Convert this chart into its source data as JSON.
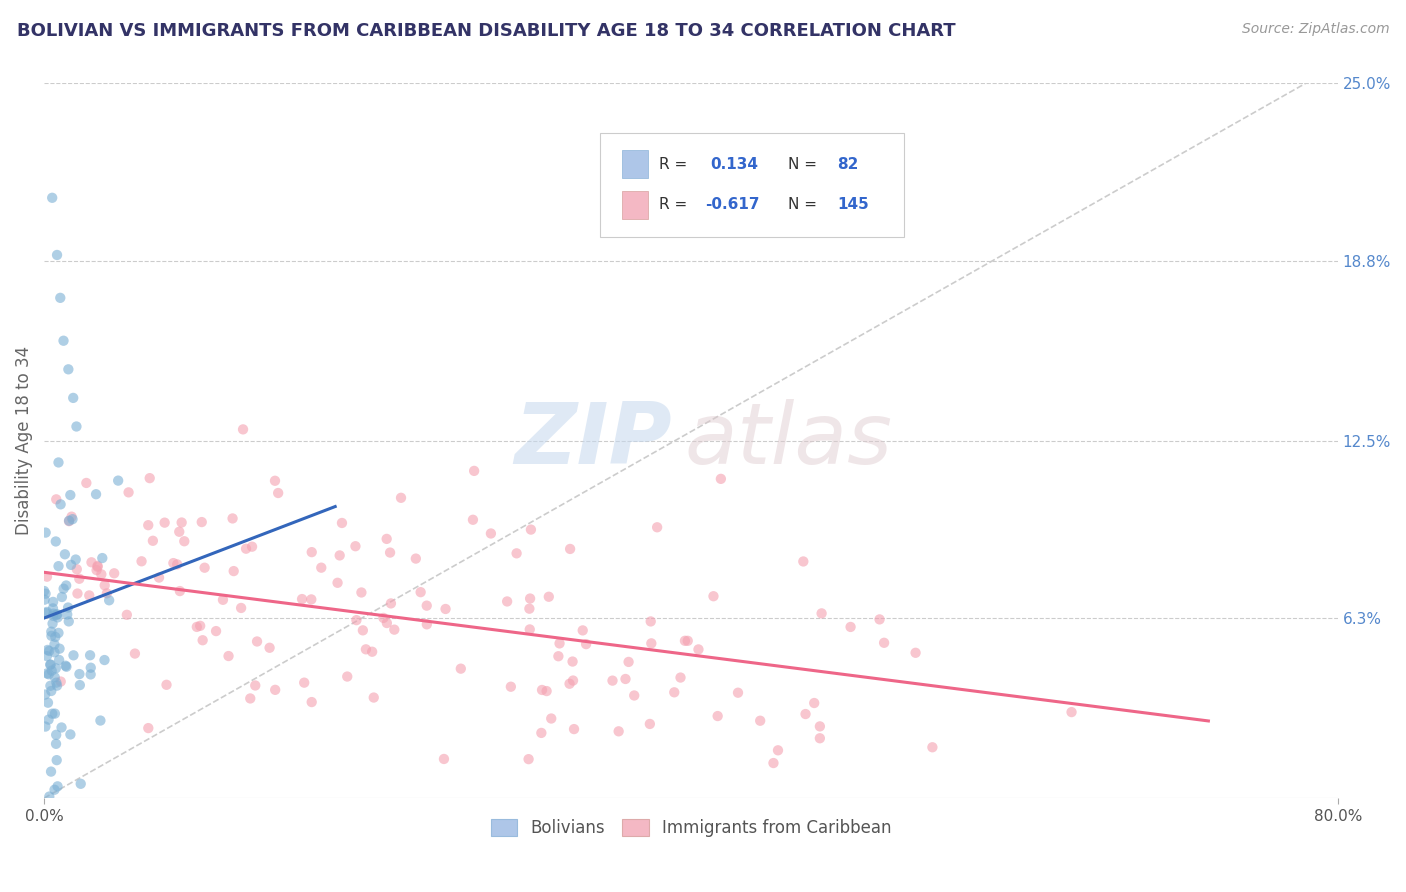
{
  "title": "BOLIVIAN VS IMMIGRANTS FROM CARIBBEAN DISABILITY AGE 18 TO 34 CORRELATION CHART",
  "source": "Source: ZipAtlas.com",
  "ylabel": "Disability Age 18 to 34",
  "xlim": [
    0.0,
    0.8
  ],
  "ylim": [
    0.0,
    0.25
  ],
  "xtick_labels": [
    "0.0%",
    "80.0%"
  ],
  "ytick_labels_right": [
    "25.0%",
    "18.8%",
    "12.5%",
    "6.3%"
  ],
  "ytick_vals_right": [
    0.25,
    0.188,
    0.125,
    0.063
  ],
  "blue_color": "#7BAFD4",
  "pink_color": "#F4A0B0",
  "blue_light": "#AEC6E8",
  "pink_light": "#F4B8C4",
  "line_blue": "#3366BB",
  "line_pink": "#EE6688",
  "legend_label_bolivians": "Bolivians",
  "legend_label_caribbean": "Immigrants from Caribbean",
  "title_color": "#333366",
  "grid_color": "#cccccc",
  "source_color": "#999999",
  "right_label_color": "#5588CC",
  "title_fontsize": 13,
  "source_fontsize": 10
}
